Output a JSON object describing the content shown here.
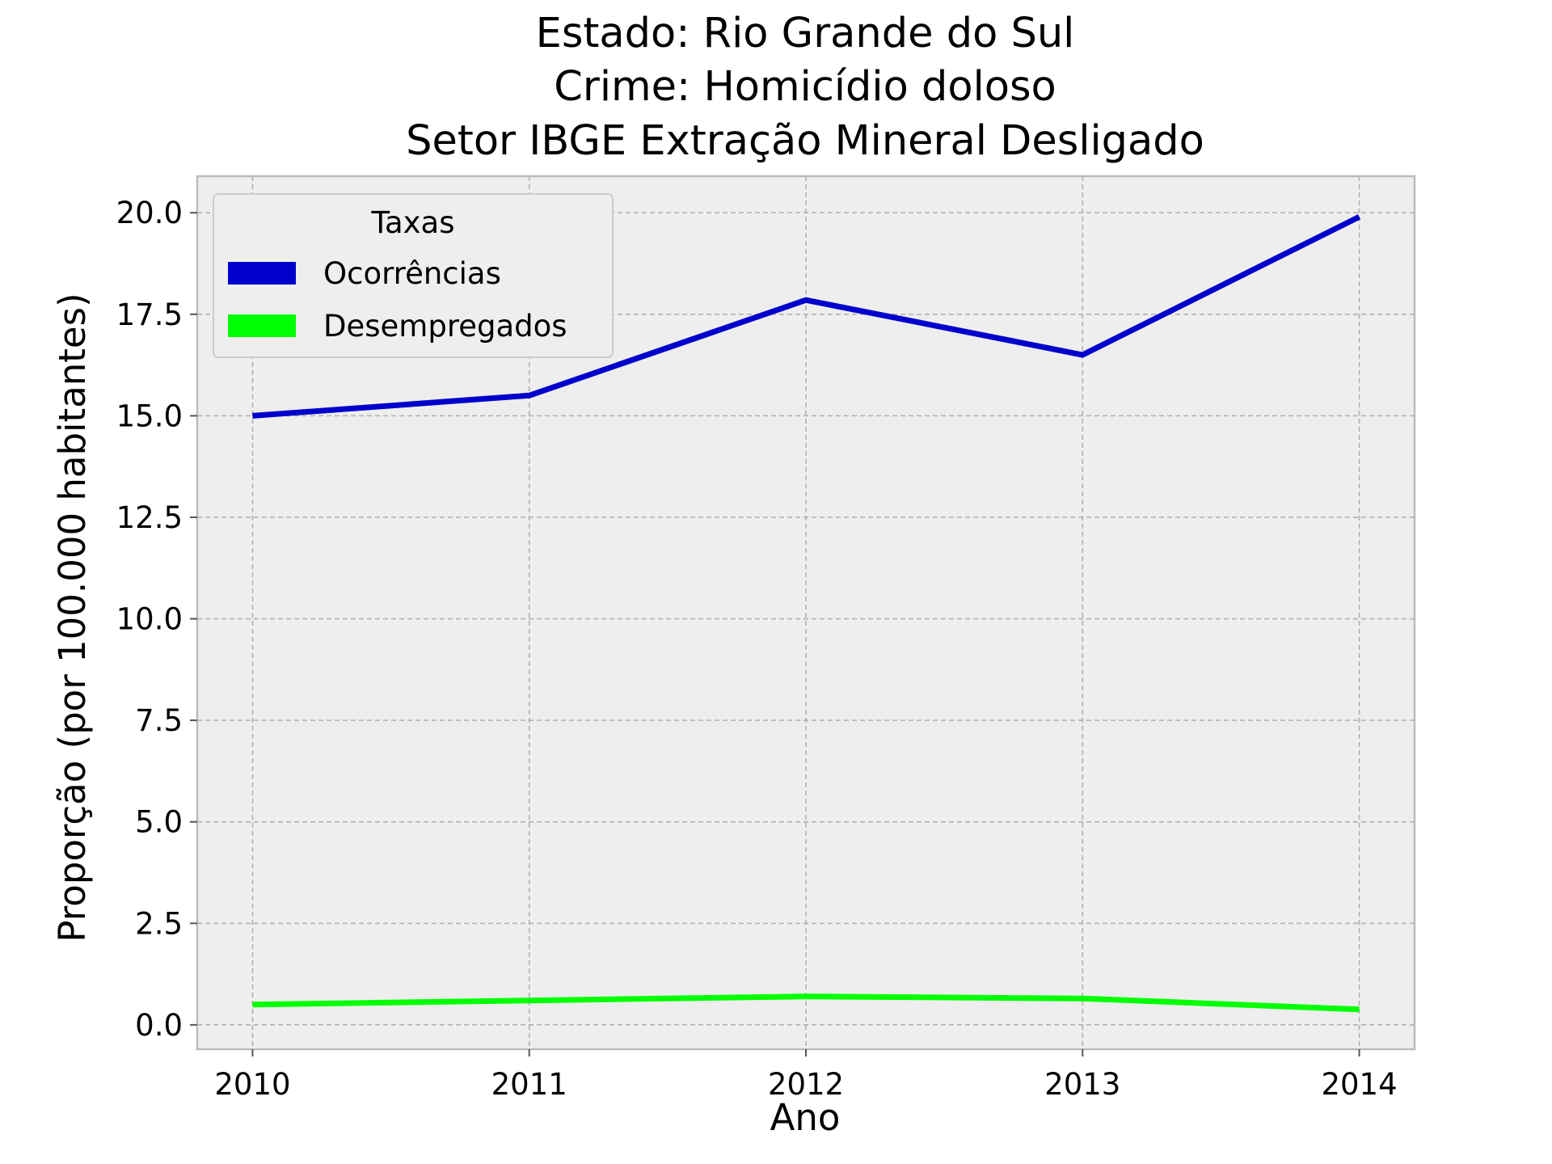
{
  "chart_data": {
    "type": "line",
    "title_lines": [
      "Estado: Rio Grande do Sul",
      "Crime: Homicídio doloso",
      "Setor IBGE  Extração Mineral   Desligado"
    ],
    "xlabel": "Ano",
    "ylabel": "Proporção (por 100.000 habitantes)",
    "x": [
      2010,
      2011,
      2012,
      2013,
      2014
    ],
    "x_tick_labels": [
      "2010",
      "2011",
      "2012",
      "2013",
      "2014"
    ],
    "y_ticks": [
      0.0,
      2.5,
      5.0,
      7.5,
      10.0,
      12.5,
      15.0,
      17.5,
      20.0
    ],
    "y_tick_labels": [
      "0.0",
      "2.5",
      "5.0",
      "7.5",
      "10.0",
      "12.5",
      "15.0",
      "17.5",
      "20.0"
    ],
    "xlim": [
      2009.8,
      2014.2
    ],
    "ylim": [
      -0.6,
      20.9
    ],
    "grid": true,
    "legend": {
      "title": "Taxas",
      "placement": "upper-left"
    },
    "series": [
      {
        "name": "Ocorrências",
        "color": "#0000cc",
        "values": [
          15.0,
          15.5,
          17.85,
          16.5,
          19.9
        ]
      },
      {
        "name": "Desempregados",
        "color": "#00ff00",
        "values": [
          0.5,
          0.6,
          0.7,
          0.65,
          0.38
        ]
      }
    ]
  }
}
